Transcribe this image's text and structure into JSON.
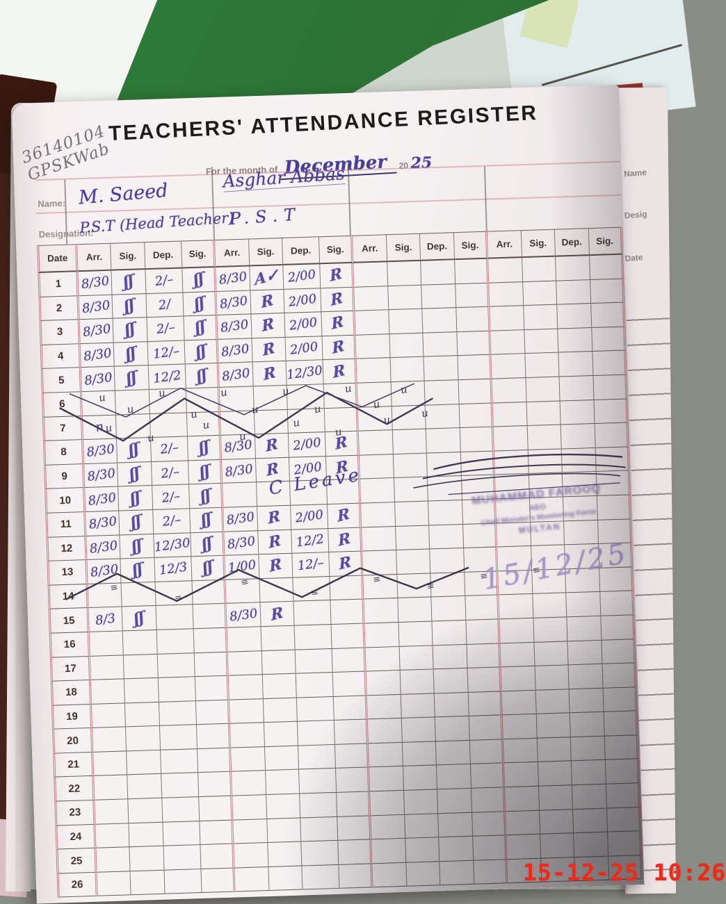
{
  "photo": {
    "camera_timestamp": "15-12-25 10:26"
  },
  "page": {
    "school_code_line1": "36140104",
    "school_code_line2": "GPSKWab",
    "title": "TEACHERS' ATTENDANCE REGISTER",
    "month_prefix": "For the month of",
    "month_value": "December",
    "year_printed": "20",
    "year_written": "25",
    "name_label": "Name:",
    "designation_label": "Designation:",
    "teachers": [
      {
        "name": "M. Saeed",
        "designation": "P.S.T (Head Teacher)"
      },
      {
        "name": "Asghar Abbas",
        "designation": "P.S.T"
      }
    ],
    "leave_note": "C Leave",
    "stamp": {
      "line1": "MUHAMMAD FAROOQ",
      "line2": "AEO",
      "line3": "Chief Minister's Monitoring Force",
      "line4": "MULTAN",
      "date_written": "15/12/25"
    }
  },
  "next_page": {
    "labels": [
      "Name",
      "Desig",
      "Date"
    ]
  },
  "table": {
    "date_header": "Date",
    "group_headers": [
      "Arr.",
      "Sig.",
      "Dep.",
      "Sig."
    ],
    "holiday_mark": "u",
    "holiday_mark2": "≡",
    "rows": [
      {
        "date": "1",
        "e": [
          "8/30",
          "ʃʃ",
          "2/–",
          "ʃʃ",
          "8/30",
          "A✓",
          "2/00",
          "R",
          "",
          "",
          "",
          "",
          "",
          "",
          "",
          ""
        ]
      },
      {
        "date": "2",
        "e": [
          "8/30",
          "ʃʃ",
          "2/",
          "ʃʃ",
          "8/30",
          "R",
          "2/00",
          "R",
          "",
          "",
          "",
          "",
          "",
          "",
          "",
          ""
        ]
      },
      {
        "date": "3",
        "e": [
          "8/30",
          "ʃʃ",
          "2/–",
          "ʃʃ",
          "8/30",
          "R",
          "2/00",
          "R",
          "",
          "",
          "",
          "",
          "",
          "",
          "",
          ""
        ]
      },
      {
        "date": "4",
        "e": [
          "8/30",
          "ʃʃ",
          "12/–",
          "ʃʃ",
          "8/30",
          "R",
          "2/00",
          "R",
          "",
          "",
          "",
          "",
          "",
          "",
          "",
          ""
        ]
      },
      {
        "date": "5",
        "e": [
          "8/30",
          "ʃʃ",
          "12/2",
          "ʃʃ",
          "8/30",
          "R",
          "12/30",
          "R",
          "",
          "",
          "",
          "",
          "",
          "",
          "",
          ""
        ]
      },
      {
        "date": "6",
        "e": [
          "",
          "",
          "",
          "",
          "",
          "",
          "",
          "",
          "",
          "",
          "",
          "",
          "",
          "",
          "",
          ""
        ]
      },
      {
        "date": "7",
        "e": [
          "n",
          "",
          "",
          "",
          "",
          "",
          "",
          "",
          "",
          "",
          "",
          "",
          "",
          "",
          "",
          ""
        ]
      },
      {
        "date": "8",
        "e": [
          "8/30",
          "ʃʃ",
          "2/–",
          "ʃʃ",
          "8/30",
          "R",
          "2/00",
          "R",
          "",
          "",
          "",
          "",
          "",
          "",
          "",
          ""
        ]
      },
      {
        "date": "9",
        "e": [
          "8/30",
          "ʃʃ",
          "2/–",
          "ʃʃ",
          "8/30",
          "R",
          "2/00",
          "R",
          "",
          "",
          "",
          "",
          "",
          "",
          "",
          ""
        ]
      },
      {
        "date": "10",
        "e": [
          "8/30",
          "ʃʃ",
          "2/–",
          "ʃʃ",
          "",
          "",
          "",
          "",
          "",
          "",
          "",
          "",
          "",
          "",
          "",
          ""
        ]
      },
      {
        "date": "11",
        "e": [
          "8/30",
          "ʃʃ",
          "2/–",
          "ʃʃ",
          "8/30",
          "R",
          "2/00",
          "R",
          "",
          "",
          "",
          "",
          "",
          "",
          "",
          ""
        ]
      },
      {
        "date": "12",
        "e": [
          "8/30",
          "ʃʃ",
          "12/30",
          "ʃʃ",
          "8/30",
          "R",
          "12/2",
          "R",
          "",
          "",
          "",
          "",
          "",
          "",
          "",
          ""
        ]
      },
      {
        "date": "13",
        "e": [
          "8/30",
          "ʃʃ",
          "12/3",
          "ʃʃ",
          "1/00",
          "R",
          "12/–",
          "R",
          "",
          "",
          "",
          "",
          "",
          "",
          "",
          ""
        ]
      },
      {
        "date": "14",
        "e": [
          "",
          "",
          "",
          "",
          "",
          "",
          "",
          "",
          "",
          "",
          "",
          "",
          "",
          "",
          "",
          ""
        ]
      },
      {
        "date": "15",
        "e": [
          "8/3",
          "ʃʃ",
          "",
          "",
          "8/30",
          "R",
          "",
          "",
          "",
          "",
          "",
          "",
          "",
          "",
          "",
          ""
        ]
      },
      {
        "date": "16",
        "e": [
          "",
          "",
          "",
          "",
          "",
          "",
          "",
          "",
          "",
          "",
          "",
          "",
          "",
          "",
          "",
          ""
        ]
      },
      {
        "date": "17",
        "e": [
          "",
          "",
          "",
          "",
          "",
          "",
          "",
          "",
          "",
          "",
          "",
          "",
          "",
          "",
          "",
          ""
        ]
      },
      {
        "date": "18",
        "e": [
          "",
          "",
          "",
          "",
          "",
          "",
          "",
          "",
          "",
          "",
          "",
          "",
          "",
          "",
          "",
          ""
        ]
      },
      {
        "date": "19",
        "e": [
          "",
          "",
          "",
          "",
          "",
          "",
          "",
          "",
          "",
          "",
          "",
          "",
          "",
          "",
          "",
          ""
        ]
      },
      {
        "date": "20",
        "e": [
          "",
          "",
          "",
          "",
          "",
          "",
          "",
          "",
          "",
          "",
          "",
          "",
          "",
          "",
          "",
          ""
        ]
      },
      {
        "date": "21",
        "e": [
          "",
          "",
          "",
          "",
          "",
          "",
          "",
          "",
          "",
          "",
          "",
          "",
          "",
          "",
          "",
          ""
        ]
      },
      {
        "date": "22",
        "e": [
          "",
          "",
          "",
          "",
          "",
          "",
          "",
          "",
          "",
          "",
          "",
          "",
          "",
          "",
          "",
          ""
        ]
      },
      {
        "date": "23",
        "e": [
          "",
          "",
          "",
          "",
          "",
          "",
          "",
          "",
          "",
          "",
          "",
          "",
          "",
          "",
          "",
          ""
        ]
      },
      {
        "date": "24",
        "e": [
          "",
          "",
          "",
          "",
          "",
          "",
          "",
          "",
          "",
          "",
          "",
          "",
          "",
          "",
          "",
          ""
        ]
      },
      {
        "date": "25",
        "e": [
          "",
          "",
          "",
          "",
          "",
          "",
          "",
          "",
          "",
          "",
          "",
          "",
          "",
          "",
          "",
          ""
        ]
      },
      {
        "date": "26",
        "e": [
          "",
          "",
          "",
          "",
          "",
          "",
          "",
          "",
          "",
          "",
          "",
          "",
          "",
          "",
          "",
          ""
        ]
      }
    ]
  }
}
